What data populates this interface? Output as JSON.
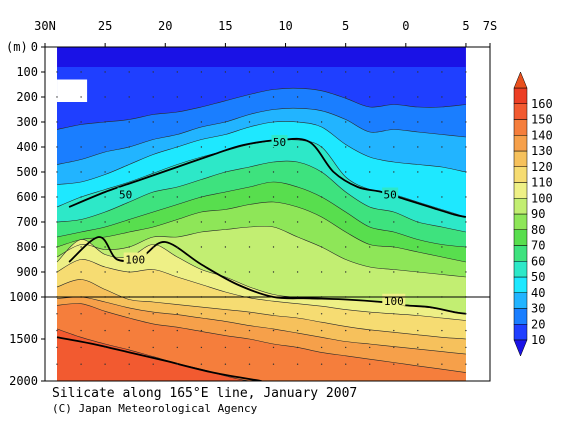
{
  "title": "Silicate along 165°E line, January 2007",
  "credit": "(C) Japan Meteorological Agency",
  "chart_data": {
    "type": "heatmap",
    "title": "Silicate along 165°E line, January 2007",
    "ylabel": "(m)",
    "x_axis": {
      "quantity": "latitude",
      "ticks": [
        "30N",
        "25",
        "20",
        "15",
        "10",
        "5",
        "0",
        "5",
        "7S"
      ],
      "tick_values": [
        30,
        25,
        20,
        15,
        10,
        5,
        0,
        -5,
        -7
      ],
      "range": [
        30,
        -7
      ]
    },
    "y_axis": {
      "quantity": "depth",
      "unit": "m",
      "ticks": [
        "0",
        "100",
        "200",
        "300",
        "400",
        "500",
        "600",
        "700",
        "800",
        "900",
        "1000",
        "1500",
        "2000"
      ],
      "tick_values": [
        0,
        100,
        200,
        300,
        400,
        500,
        600,
        700,
        800,
        900,
        1000,
        1500,
        2000
      ],
      "scale_break_at": 1000,
      "range": [
        0,
        2000
      ],
      "inverted": true
    },
    "data_extent": {
      "lat_north": 29,
      "lat_south": -5
    },
    "colorbar": {
      "levels": [
        10,
        20,
        30,
        40,
        50,
        60,
        70,
        80,
        90,
        100,
        110,
        120,
        130,
        140,
        150,
        160
      ],
      "labels": [
        "10",
        "20",
        "30",
        "40",
        "50",
        "60",
        "70",
        "80",
        "90",
        "100",
        "110",
        "120",
        "130",
        "140",
        "150",
        "160"
      ],
      "colors": [
        "#1f3fff",
        "#1a7eff",
        "#22b4ff",
        "#1ee8ff",
        "#2de8c8",
        "#3ee27e",
        "#58de4e",
        "#8ee658",
        "#c2ee72",
        "#eef086",
        "#f6dc72",
        "#f6c15c",
        "#f6a04a",
        "#f57e3c",
        "#f25a30",
        "#ec3e24"
      ],
      "out_of_range_high": "#e8501e",
      "out_of_range_low": "#1a12e6"
    },
    "contour_lines": [
      {
        "level": 50,
        "lat": [
          28,
          25,
          22,
          19,
          16,
          13.5,
          10.5,
          8,
          6,
          4,
          2,
          0,
          -2,
          -4,
          -5
        ],
        "depth": [
          640,
          580,
          530,
          480,
          430,
          392,
          372,
          380,
          500,
          560,
          580,
          610,
          640,
          670,
          680
        ]
      },
      {
        "level": 100,
        "lat": [
          28,
          25.5,
          24,
          22,
          20,
          17,
          14,
          11,
          8,
          5,
          2,
          0,
          -2,
          -4,
          -5
        ],
        "depth": [
          860,
          760,
          850,
          840,
          780,
          870,
          950,
          1000,
          1015,
          1030,
          1060,
          1100,
          1120,
          1180,
          1200
        ]
      },
      {
        "level": 150,
        "lat": [
          29,
          26,
          23,
          20,
          16,
          12
        ],
        "depth": [
          1480,
          1560,
          1660,
          1760,
          1900,
          2000
        ]
      }
    ],
    "contour_labels": [
      {
        "text": "50",
        "lat": 10.5,
        "depth": 380
      },
      {
        "text": "50",
        "lat": 23.3,
        "depth": 590
      },
      {
        "text": "50",
        "lat": 1.3,
        "depth": 590
      },
      {
        "text": "100",
        "lat": 22.5,
        "depth": 850
      },
      {
        "text": "100",
        "lat": 1.0,
        "depth": 1045
      }
    ],
    "isoline_depths": {
      "lat": [
        29,
        27,
        25,
        23,
        21,
        19,
        17,
        15,
        13,
        11,
        9,
        7,
        5,
        3,
        1,
        -1,
        -3,
        -5
      ],
      "10": [
        80,
        80,
        80,
        80,
        80,
        80,
        80,
        80,
        80,
        80,
        80,
        80,
        80,
        80,
        80,
        80,
        80,
        80
      ],
      "20": [
        330,
        310,
        300,
        290,
        270,
        260,
        240,
        215,
        190,
        170,
        165,
        175,
        205,
        240,
        230,
        240,
        240,
        230
      ],
      "30": [
        470,
        450,
        420,
        400,
        370,
        350,
        320,
        300,
        270,
        250,
        245,
        255,
        290,
        340,
        330,
        340,
        350,
        360
      ],
      "40": [
        550,
        540,
        510,
        470,
        430,
        400,
        370,
        350,
        320,
        300,
        300,
        320,
        390,
        440,
        460,
        470,
        480,
        500
      ],
      "50": [
        640,
        600,
        570,
        540,
        505,
        470,
        440,
        415,
        390,
        375,
        372,
        400,
        520,
        570,
        590,
        620,
        650,
        680
      ],
      "60": [
        700,
        690,
        660,
        620,
        580,
        560,
        530,
        500,
        480,
        460,
        460,
        500,
        580,
        640,
        660,
        700,
        720,
        740
      ],
      "70": [
        760,
        740,
        720,
        690,
        660,
        630,
        600,
        580,
        560,
        540,
        560,
        600,
        660,
        720,
        740,
        770,
        790,
        800
      ],
      "80": [
        800,
        770,
        760,
        740,
        720,
        690,
        660,
        650,
        630,
        620,
        640,
        680,
        740,
        790,
        800,
        820,
        840,
        860
      ],
      "90": [
        840,
        790,
        810,
        800,
        760,
        760,
        740,
        730,
        720,
        720,
        760,
        800,
        850,
        880,
        890,
        900,
        910,
        920
      ],
      "100": [
        860,
        770,
        830,
        840,
        790,
        840,
        890,
        920,
        960,
        990,
        1005,
        1015,
        1030,
        1050,
        1080,
        1110,
        1150,
        1200
      ],
      "110": [
        900,
        850,
        880,
        900,
        890,
        920,
        950,
        980,
        1010,
        1050,
        1080,
        1110,
        1150,
        1180,
        1200,
        1220,
        1250,
        1280
      ],
      "120": [
        960,
        930,
        970,
        1030,
        1060,
        1090,
        1120,
        1150,
        1180,
        1220,
        1250,
        1300,
        1350,
        1390,
        1420,
        1450,
        1480,
        1500
      ],
      "130": [
        1020,
        1000,
        1060,
        1130,
        1180,
        1210,
        1250,
        1290,
        1340,
        1380,
        1430,
        1480,
        1530,
        1560,
        1590,
        1620,
        1650,
        1680
      ],
      "140": [
        1100,
        1080,
        1170,
        1250,
        1320,
        1360,
        1410,
        1460,
        1500,
        1560,
        1600,
        1660,
        1700,
        1740,
        1780,
        1820,
        1860,
        1900
      ],
      "150": [
        1380,
        1480,
        1560,
        1630,
        1710,
        1790,
        1860,
        1940,
        2000,
        2000,
        2000,
        2000,
        2000,
        2000,
        2000,
        2000,
        2000,
        2000
      ]
    },
    "missing_regions": [
      {
        "lat_from": 29,
        "lat_to": 26.5,
        "depth_from": 130,
        "depth_to": 220
      }
    ],
    "station_grid": {
      "lat_every": 2,
      "depths": [
        100,
        200,
        300,
        400,
        500,
        600,
        700,
        800,
        900,
        1000,
        1200,
        1400,
        1600,
        1800
      ]
    }
  }
}
